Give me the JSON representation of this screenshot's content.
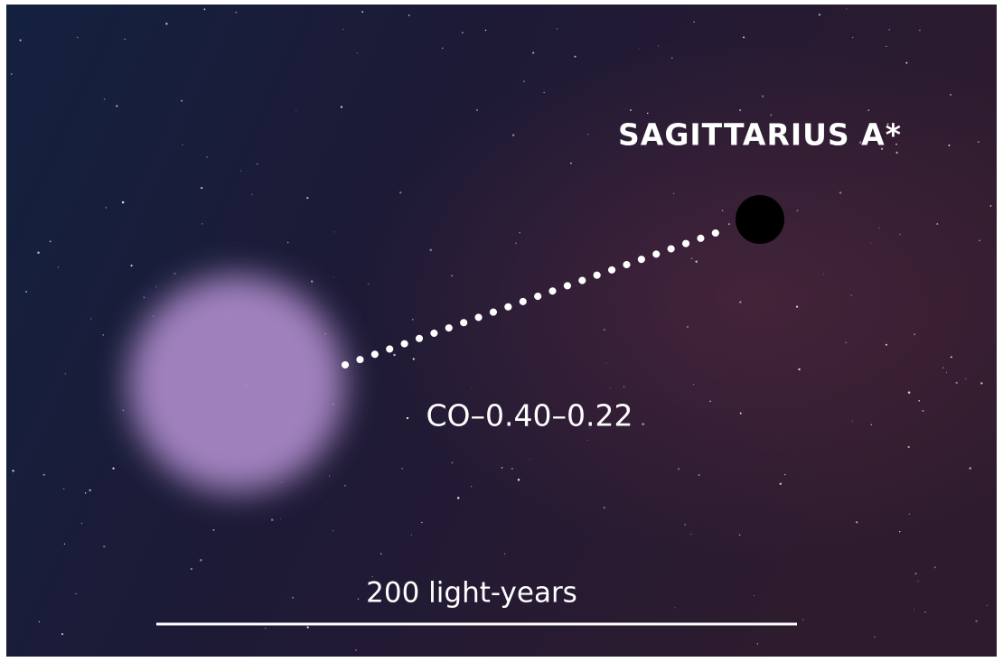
{
  "nodes": [
    {
      "label": "SAGITTARIUS A*"
    },
    {
      "label": "CO–0.40–0.22"
    }
  ],
  "scale_bar": {
    "label": "200 light-years"
  }
}
